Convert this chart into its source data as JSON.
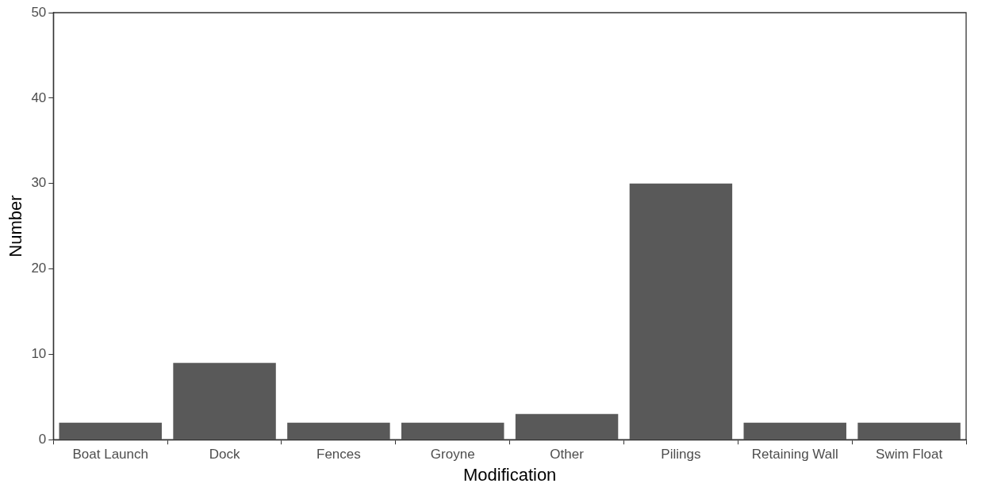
{
  "chart_data": {
    "type": "bar",
    "xlabel": "Modification",
    "ylabel": "Number",
    "categories": [
      "Boat Launch",
      "Dock",
      "Fences",
      "Groyne",
      "Other",
      "Pilings",
      "Retaining Wall",
      "Swim Float"
    ],
    "values": [
      2,
      9,
      2,
      2,
      3,
      30,
      2,
      2
    ],
    "color": "#595959",
    "ylim": [
      0,
      50
    ],
    "yticks": [
      0,
      10,
      20,
      30,
      40,
      50
    ],
    "grid": false,
    "legend": false
  }
}
